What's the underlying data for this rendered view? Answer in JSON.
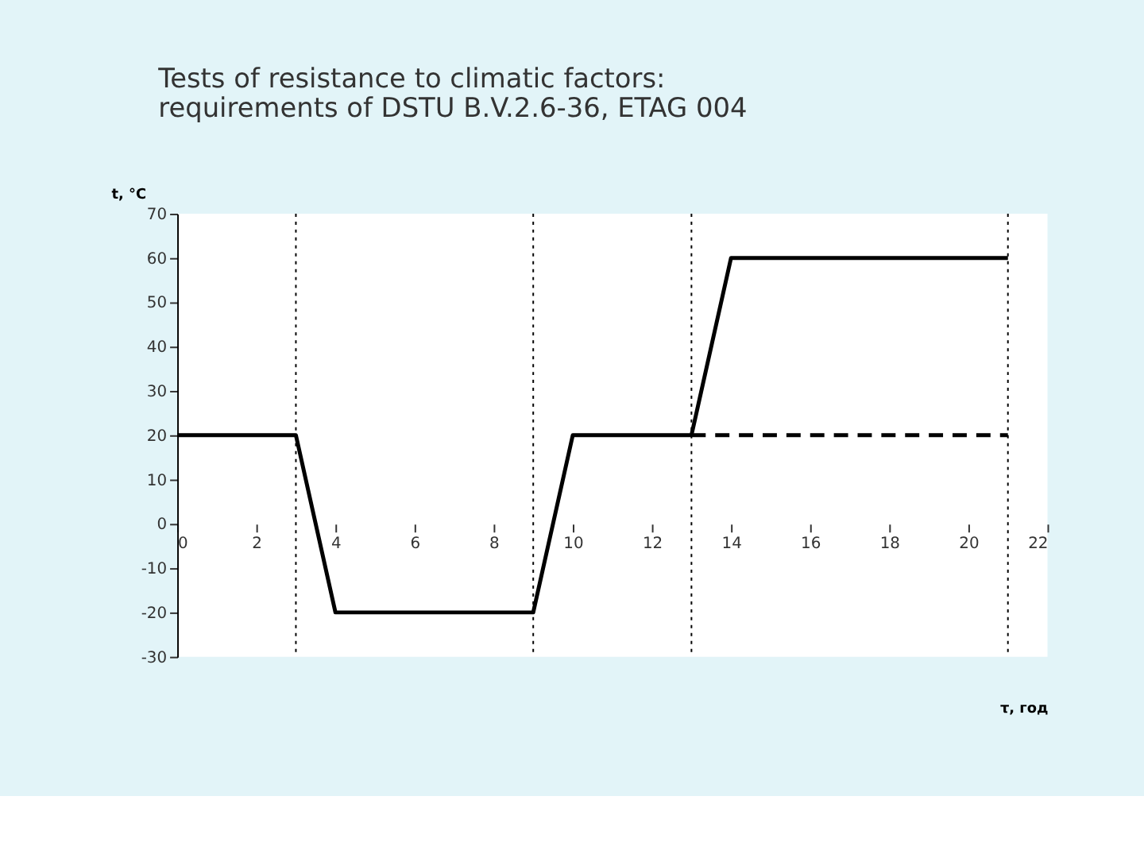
{
  "chart_data": {
    "type": "line",
    "title": "Tests of resistance to climatic factors:\nrequirements of DSTU B.V.2.6-36,  ETAG 004",
    "xlabel": "τ, год",
    "ylabel": "t, °C",
    "series": [
      {
        "color": "#000000",
        "line_style": "solid",
        "x": [
          0,
          3,
          4,
          9,
          10,
          13,
          14,
          21
        ],
        "values": [
          20,
          20,
          -20,
          -20,
          20,
          20,
          60,
          60
        ]
      },
      {
        "color": "#000000",
        "line_style": "dashed",
        "x": [
          13,
          21
        ],
        "values": [
          20,
          20
        ]
      }
    ],
    "ref_lines": [
      {
        "axis": "x",
        "value": 3,
        "line_style": "dotted",
        "color": "#000000"
      },
      {
        "axis": "x",
        "value": 9,
        "line_style": "dotted",
        "color": "#000000"
      },
      {
        "axis": "x",
        "value": 13,
        "line_style": "dotted",
        "color": "#000000"
      },
      {
        "axis": "x",
        "value": 21,
        "line_style": "dotted",
        "color": "#000000"
      }
    ],
    "xlim": [
      0,
      22
    ],
    "xticks": [
      0,
      2,
      4,
      6,
      8,
      10,
      12,
      14,
      16,
      18,
      20,
      22
    ],
    "ylim": [
      -30,
      70
    ],
    "yticks": [
      -30,
      -20,
      -10,
      0,
      10,
      20,
      30,
      40,
      50,
      60,
      70
    ],
    "grid": false,
    "marker": "none"
  }
}
